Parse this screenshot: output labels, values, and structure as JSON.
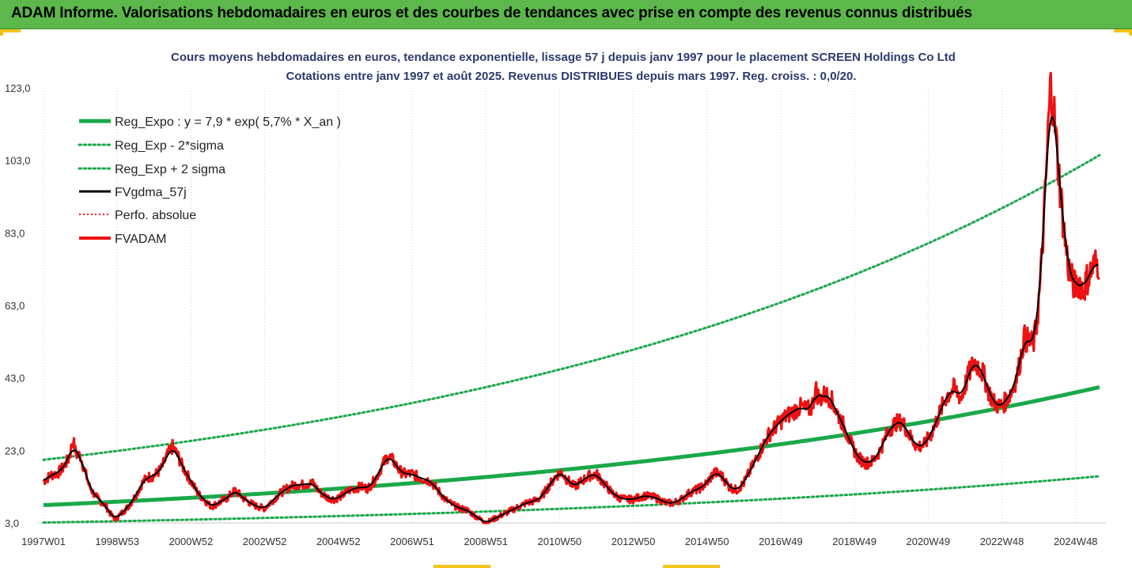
{
  "header": {
    "title": "ADAM Informe. Valorisations hebdomadaires en euros et des courbes de tendances avec prise en compte des revenus connus distribués"
  },
  "colors": {
    "header_bg": "#5cb84a",
    "accent_yellow": "#f2c41a",
    "green": "#1aa84a",
    "red": "#ee1111",
    "black": "#000000"
  },
  "chart_data": {
    "type": "line",
    "title_lines": [
      "Cours moyens hebdomadaires en euros, tendance exponentielle, lissage 57 j depuis janv 1997 pour le placement SCREEN Holdings Co Ltd",
      "Cotations entre janv 1997 et août 2025.  Revenus DISTRIBUES depuis mars 1997. Reg. croiss. : 0,0/20."
    ],
    "xlabel": "",
    "ylabel": "",
    "x_tick_labels": [
      "1997W01",
      "1998W53",
      "2000W52",
      "2002W52",
      "2004W52",
      "2006W51",
      "2008W51",
      "2010W50",
      "2012W50",
      "2014W50",
      "2016W49",
      "2018W49",
      "2020W49",
      "2022W48",
      "2024W48"
    ],
    "x_range_years": [
      1997.0,
      2025.65
    ],
    "ylim": [
      3,
      123
    ],
    "y_tick_labels": [
      "3,0",
      "23,0",
      "43,0",
      "63,0",
      "83,0",
      "103,0",
      "123,0"
    ],
    "grid": "vertical-dotted",
    "legend_position": "top-left",
    "series": [
      {
        "name": "Reg_Expo : y = 7,9 * exp( 5,7% *  X_an )",
        "style": "thick-solid",
        "color": "#1aa84a",
        "model": {
          "a": 7.9,
          "rate": 0.057
        }
      },
      {
        "name": "Reg_Exp - 2*sigma",
        "style": "dotted",
        "color": "#1aa84a",
        "model": {
          "a": 3.1,
          "rate": 0.057
        }
      },
      {
        "name": "Reg_Exp + 2 sigma",
        "style": "dotted",
        "color": "#1aa84a",
        "model": {
          "a": 20.4,
          "rate": 0.057
        }
      },
      {
        "name": "FVgdma_57j",
        "style": "solid",
        "color": "#000000"
      },
      {
        "name": "Perfo. absolue",
        "style": "dotted",
        "color": "#ee1111"
      },
      {
        "name": "FVADAM",
        "style": "thick-solid",
        "color": "#ee1111"
      }
    ],
    "fvadam_points": [
      [
        1997.0,
        14.5
      ],
      [
        1997.2,
        16.2
      ],
      [
        1997.4,
        16.8
      ],
      [
        1997.55,
        18.5
      ],
      [
        1997.7,
        21.0
      ],
      [
        1997.8,
        26.0
      ],
      [
        1997.88,
        22.0
      ],
      [
        1998.0,
        21.5
      ],
      [
        1998.1,
        18.0
      ],
      [
        1998.25,
        13.0
      ],
      [
        1998.4,
        10.5
      ],
      [
        1998.55,
        9.0
      ],
      [
        1998.7,
        7.5
      ],
      [
        1998.85,
        5.0
      ],
      [
        1998.95,
        4.0
      ],
      [
        1999.1,
        5.5
      ],
      [
        1999.3,
        7.5
      ],
      [
        1999.5,
        10.5
      ],
      [
        1999.65,
        13.5
      ],
      [
        1999.8,
        15.5
      ],
      [
        2000.0,
        16.0
      ],
      [
        2000.2,
        18.0
      ],
      [
        2000.35,
        21.5
      ],
      [
        2000.5,
        24.0
      ],
      [
        2000.62,
        22.0
      ],
      [
        2000.8,
        18.0
      ],
      [
        2001.0,
        14.5
      ],
      [
        2001.2,
        11.0
      ],
      [
        2001.4,
        9.0
      ],
      [
        2001.55,
        7.5
      ],
      [
        2001.75,
        8.5
      ],
      [
        2002.0,
        10.0
      ],
      [
        2002.2,
        12.0
      ],
      [
        2002.4,
        10.0
      ],
      [
        2002.6,
        8.5
      ],
      [
        2002.8,
        7.5
      ],
      [
        2003.0,
        7.0
      ],
      [
        2003.2,
        9.0
      ],
      [
        2003.4,
        11.0
      ],
      [
        2003.6,
        12.5
      ],
      [
        2003.8,
        13.5
      ],
      [
        2004.0,
        13.5
      ],
      [
        2004.3,
        14.0
      ],
      [
        2004.5,
        11.5
      ],
      [
        2004.7,
        10.0
      ],
      [
        2004.9,
        9.5
      ],
      [
        2005.1,
        10.5
      ],
      [
        2005.3,
        12.0
      ],
      [
        2005.6,
        13.0
      ],
      [
        2005.8,
        12.5
      ],
      [
        2006.0,
        15.0
      ],
      [
        2006.2,
        19.0
      ],
      [
        2006.35,
        21.5
      ],
      [
        2006.5,
        20.0
      ],
      [
        2006.65,
        17.5
      ],
      [
        2006.8,
        16.5
      ],
      [
        2007.0,
        16.5
      ],
      [
        2007.2,
        15.5
      ],
      [
        2007.5,
        14.5
      ],
      [
        2007.7,
        12.0
      ],
      [
        2007.9,
        9.5
      ],
      [
        2008.1,
        8.0
      ],
      [
        2008.3,
        7.0
      ],
      [
        2008.5,
        6.5
      ],
      [
        2008.7,
        5.0
      ],
      [
        2008.85,
        4.0
      ],
      [
        2009.0,
        3.0
      ],
      [
        2009.1,
        3.5
      ],
      [
        2009.3,
        4.5
      ],
      [
        2009.5,
        5.5
      ],
      [
        2009.7,
        6.5
      ],
      [
        2009.9,
        7.5
      ],
      [
        2010.1,
        8.5
      ],
      [
        2010.3,
        9.0
      ],
      [
        2010.5,
        10.0
      ],
      [
        2010.7,
        13.0
      ],
      [
        2010.9,
        16.0
      ],
      [
        2011.05,
        17.0
      ],
      [
        2011.2,
        15.0
      ],
      [
        2011.4,
        13.0
      ],
      [
        2011.6,
        14.5
      ],
      [
        2011.8,
        16.0
      ],
      [
        2012.0,
        16.5
      ],
      [
        2012.2,
        14.0
      ],
      [
        2012.4,
        11.5
      ],
      [
        2012.6,
        10.0
      ],
      [
        2012.8,
        9.5
      ],
      [
        2013.0,
        9.5
      ],
      [
        2013.3,
        10.5
      ],
      [
        2013.6,
        10.0
      ],
      [
        2013.9,
        8.5
      ],
      [
        2014.1,
        8.5
      ],
      [
        2014.3,
        9.5
      ],
      [
        2014.55,
        11.5
      ],
      [
        2014.8,
        12.5
      ],
      [
        2015.0,
        14.0
      ],
      [
        2015.2,
        17.0
      ],
      [
        2015.4,
        16.0
      ],
      [
        2015.6,
        13.0
      ],
      [
        2015.8,
        12.0
      ],
      [
        2016.0,
        14.0
      ],
      [
        2016.2,
        18.0
      ],
      [
        2016.45,
        23.0
      ],
      [
        2016.65,
        27.0
      ],
      [
        2016.9,
        30.0
      ],
      [
        2017.1,
        32.0
      ],
      [
        2017.3,
        33.5
      ],
      [
        2017.55,
        35.0
      ],
      [
        2017.7,
        34.0
      ],
      [
        2017.85,
        35.0
      ],
      [
        2017.95,
        40.0
      ],
      [
        2018.05,
        37.0
      ],
      [
        2018.2,
        38.5
      ],
      [
        2018.35,
        37.5
      ],
      [
        2018.5,
        34.0
      ],
      [
        2018.7,
        30.0
      ],
      [
        2018.9,
        25.0
      ],
      [
        2019.1,
        21.0
      ],
      [
        2019.3,
        19.5
      ],
      [
        2019.5,
        20.0
      ],
      [
        2019.7,
        23.0
      ],
      [
        2019.9,
        28.0
      ],
      [
        2020.1,
        30.5
      ],
      [
        2020.3,
        31.0
      ],
      [
        2020.5,
        27.0
      ],
      [
        2020.7,
        24.0
      ],
      [
        2020.9,
        24.5
      ],
      [
        2021.1,
        28.0
      ],
      [
        2021.3,
        33.0
      ],
      [
        2021.5,
        38.0
      ],
      [
        2021.7,
        40.0
      ],
      [
        2021.9,
        37.5
      ],
      [
        2022.1,
        44.0
      ],
      [
        2022.25,
        47.5
      ],
      [
        2022.35,
        46.5
      ],
      [
        2022.5,
        44.0
      ],
      [
        2022.65,
        39.0
      ],
      [
        2022.8,
        36.0
      ],
      [
        2022.95,
        35.0
      ],
      [
        2023.1,
        36.5
      ],
      [
        2023.3,
        40.0
      ],
      [
        2023.45,
        45.0
      ],
      [
        2023.6,
        54.0
      ],
      [
        2023.75,
        53.0
      ],
      [
        2023.85,
        52.0
      ],
      [
        2023.95,
        58.0
      ],
      [
        2024.05,
        70.0
      ],
      [
        2024.15,
        88.0
      ],
      [
        2024.25,
        110.0
      ],
      [
        2024.32,
        124.0
      ],
      [
        2024.4,
        118.0
      ],
      [
        2024.5,
        105.0
      ],
      [
        2024.6,
        93.0
      ],
      [
        2024.7,
        82.0
      ],
      [
        2024.8,
        74.0
      ],
      [
        2024.9,
        70.0
      ],
      [
        2025.0,
        68.0
      ],
      [
        2025.1,
        70.0
      ],
      [
        2025.2,
        67.0
      ],
      [
        2025.3,
        70.0
      ],
      [
        2025.4,
        72.0
      ],
      [
        2025.5,
        74.0
      ],
      [
        2025.6,
        75.0
      ],
      [
        2025.65,
        74.0
      ]
    ]
  }
}
